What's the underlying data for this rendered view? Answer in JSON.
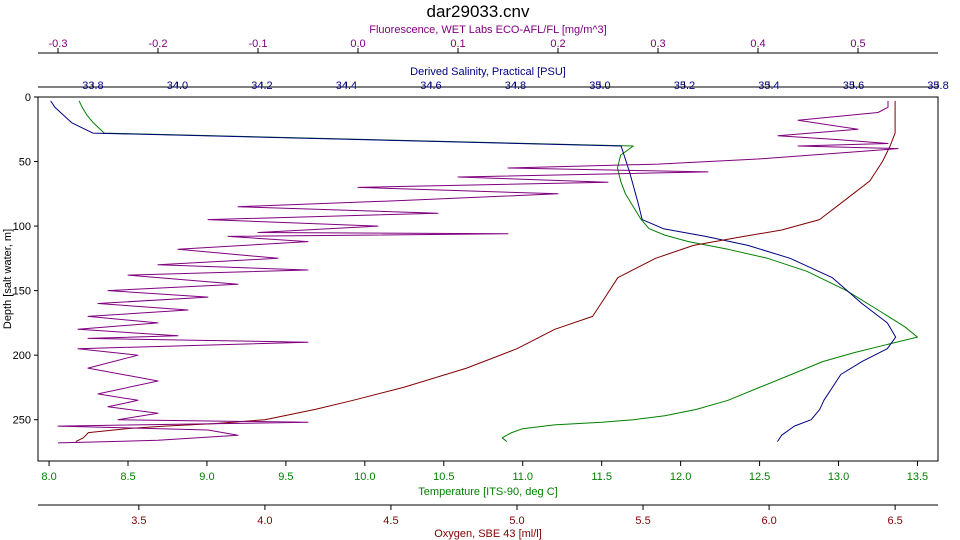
{
  "chart_data": {
    "type": "line",
    "title": "dar29033.cnv",
    "grid": false,
    "legend": "none",
    "y_axis": {
      "label": "Depth [salt water, m]",
      "lim": [
        0,
        282
      ],
      "inverted": true,
      "ticks": [
        0,
        50,
        100,
        150,
        200,
        250
      ]
    },
    "x_axes": [
      {
        "id": "fluorescence",
        "position": "top-outer",
        "label": "Fluorescence, WET Labs ECO-AFL/FL [mg/m^3]",
        "color": "#800080",
        "lim": [
          -0.32,
          0.58
        ],
        "ticks": [
          -0.3,
          -0.2,
          -0.1,
          0.0,
          0.1,
          0.2,
          0.3,
          0.4,
          0.5
        ],
        "tick_labels": [
          "-0.3",
          "-0.2",
          "-0.1",
          "0.0",
          "0.1",
          "0.2",
          "0.3",
          "0.4",
          "0.5"
        ]
      },
      {
        "id": "salinity",
        "position": "top-inner",
        "label": "Derived Salinity, Practical [PSU]",
        "color": "#000080",
        "lim": [
          33.67,
          35.8
        ],
        "ticks": [
          33.8,
          34.0,
          34.2,
          34.4,
          34.6,
          34.8,
          35.0,
          35.2,
          35.4,
          35.6,
          35.8
        ],
        "tick_labels": [
          "33.8",
          "34.0",
          "34.2",
          "34.4",
          "34.6",
          "34.8",
          "35.0",
          "35.2",
          "35.4",
          "35.6",
          "35.8"
        ]
      },
      {
        "id": "temperature",
        "position": "bottom-inner",
        "label": "Temperature [ITS-90, deg C]",
        "color": "#008000",
        "lim": [
          7.93,
          13.63
        ],
        "ticks": [
          8.0,
          8.5,
          9.0,
          9.5,
          10.0,
          10.5,
          11.0,
          11.5,
          12.0,
          12.5,
          13.0,
          13.5
        ],
        "tick_labels": [
          "8.0",
          "8.5",
          "9.0",
          "9.5",
          "10.0",
          "10.5",
          "11.0",
          "11.5",
          "12.0",
          "12.5",
          "13.0",
          "13.5"
        ]
      },
      {
        "id": "oxygen",
        "position": "bottom-outer",
        "label": "Oxygen, SBE 43 [ml/l]",
        "color": "#800000",
        "lim": [
          3.1,
          6.67
        ],
        "ticks": [
          3.5,
          4.0,
          4.5,
          5.0,
          5.5,
          6.0,
          6.5
        ],
        "tick_labels": [
          "3.5",
          "4.0",
          "4.5",
          "5.0",
          "5.5",
          "6.0",
          "6.5"
        ]
      }
    ],
    "series": [
      {
        "axis": "temperature",
        "color": "#008000",
        "x": [
          8.19,
          8.21,
          8.24,
          8.28,
          8.35,
          11.7,
          11.62,
          11.6,
          11.62,
          11.65,
          11.7,
          11.75,
          11.8,
          11.9,
          12.05,
          12.3,
          12.55,
          12.8,
          13.05,
          13.25,
          13.42,
          13.5,
          13.3,
          13.1,
          12.9,
          12.7,
          12.5,
          12.3,
          12.1,
          11.9,
          11.7,
          11.5,
          11.2,
          11.0,
          10.93,
          10.87,
          10.9
        ],
        "y": [
          3,
          8,
          14,
          20,
          28,
          38,
          45,
          55,
          65,
          75,
          85,
          95,
          102,
          107,
          112,
          118,
          125,
          135,
          150,
          165,
          178,
          186,
          192,
          198,
          205,
          215,
          225,
          235,
          242,
          247,
          250,
          252,
          254,
          257,
          260,
          264,
          267
        ]
      },
      {
        "axis": "salinity",
        "color": "#000080",
        "x": [
          33.7,
          33.71,
          33.73,
          33.75,
          33.8,
          35.05,
          35.06,
          35.07,
          35.08,
          35.09,
          35.1,
          35.15,
          35.25,
          35.35,
          35.45,
          35.55,
          35.62,
          35.68,
          35.7,
          35.68,
          35.62,
          35.57,
          35.55,
          35.53,
          35.52,
          35.5,
          35.46,
          35.43,
          35.42
        ],
        "y": [
          3,
          8,
          14,
          20,
          28,
          38,
          48,
          58,
          70,
          82,
          95,
          102,
          108,
          115,
          125,
          140,
          160,
          175,
          186,
          195,
          205,
          215,
          225,
          235,
          242,
          250,
          255,
          262,
          267
        ]
      },
      {
        "axis": "oxygen",
        "color": "#800000",
        "x": [
          6.5,
          6.5,
          6.5,
          6.48,
          6.45,
          6.4,
          6.3,
          6.2,
          6.05,
          5.9,
          5.7,
          5.55,
          5.4,
          5.35,
          5.3,
          5.15,
          5.0,
          4.8,
          4.55,
          4.35,
          4.2,
          4.0,
          3.8,
          3.6,
          3.45,
          3.3,
          3.28,
          3.25
        ],
        "y": [
          3,
          15,
          28,
          38,
          50,
          65,
          80,
          95,
          103,
          108,
          115,
          125,
          140,
          155,
          170,
          180,
          195,
          210,
          225,
          235,
          242,
          250,
          253,
          255,
          257,
          260,
          264,
          267
        ]
      },
      {
        "axis": "fluorescence",
        "color": "#800080",
        "x": [
          0.53,
          0.53,
          0.52,
          0.44,
          0.5,
          0.42,
          0.48,
          0.53,
          0.44,
          0.54,
          0.4,
          0.3,
          0.15,
          0.35,
          0.1,
          0.25,
          0.0,
          0.2,
          0.05,
          -0.12,
          0.08,
          -0.15,
          0.02,
          -0.1,
          0.15,
          -0.13,
          -0.05,
          -0.18,
          -0.08,
          -0.2,
          -0.05,
          -0.23,
          -0.12,
          -0.25,
          -0.15,
          -0.26,
          -0.17,
          -0.27,
          -0.2,
          -0.28,
          -0.18,
          -0.27,
          -0.05,
          -0.28,
          -0.22,
          -0.27,
          -0.2,
          -0.26,
          -0.22,
          -0.25,
          -0.2,
          -0.24,
          -0.05,
          -0.3,
          -0.15,
          -0.12,
          -0.2,
          -0.3
        ],
        "y": [
          3,
          8,
          12,
          18,
          25,
          30,
          33,
          36,
          38,
          40,
          48,
          52,
          55,
          58,
          62,
          66,
          70,
          75,
          80,
          85,
          90,
          95,
          100,
          105,
          106,
          108,
          112,
          118,
          125,
          130,
          134,
          138,
          145,
          150,
          155,
          160,
          165,
          170,
          175,
          180,
          185,
          187,
          190,
          195,
          200,
          210,
          220,
          230,
          235,
          240,
          245,
          250,
          252,
          255,
          258,
          262,
          266,
          268
        ]
      }
    ]
  }
}
